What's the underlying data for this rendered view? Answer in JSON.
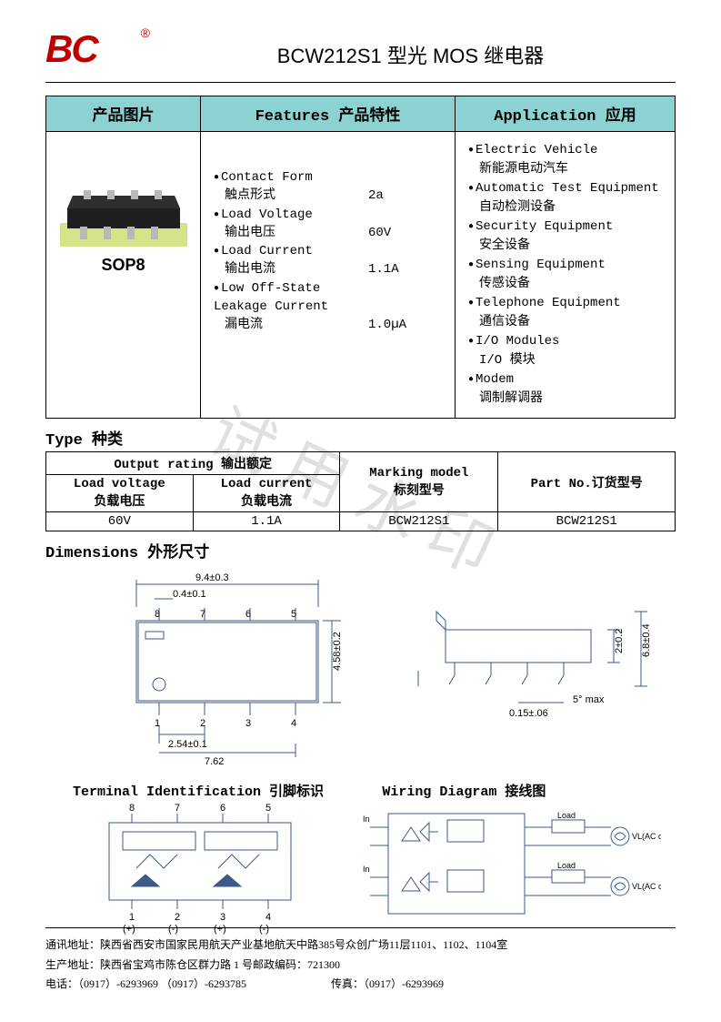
{
  "header": {
    "logo_text": "BC",
    "title": "BCW212S1 型光 MOS 继电器"
  },
  "columns": {
    "image": "产品图片",
    "features": "Features 产品特性",
    "application": "Application 应用"
  },
  "product": {
    "package_label": "SOP8",
    "chip_body_color": "#1f1f1f",
    "pin_color": "#b8b8b8",
    "board_color": "#d8e28a"
  },
  "features": [
    {
      "en": "Contact Form",
      "cn": "触点形式",
      "val": "2a"
    },
    {
      "en": "Load Voltage",
      "cn": "输出电压",
      "val": "60V"
    },
    {
      "en": "Load Current",
      "cn": "输出电流",
      "val": "1.1A"
    },
    {
      "en": "Low Off-State Leakage Current",
      "cn": "漏电流",
      "val": "1.0µA"
    }
  ],
  "applications": [
    {
      "en": "Electric Vehicle",
      "cn": "新能源电动汽车"
    },
    {
      "en": "Automatic Test Equipment",
      "cn": "自动检测设备"
    },
    {
      "en": "Security Equipment",
      "cn": "安全设备"
    },
    {
      "en": "Sensing Equipment",
      "cn": "传感设备"
    },
    {
      "en": "Telephone Equipment",
      "cn": "通信设备"
    },
    {
      "en": "I/O Modules",
      "cn": "I/O 模块"
    },
    {
      "en": "Modem",
      "cn": "调制解调器"
    }
  ],
  "sections": {
    "type": "Type 种类",
    "dimensions": "Dimensions 外形尺寸",
    "terminal": "Terminal Identification 引脚标识",
    "wiring": "Wiring Diagram  接线图"
  },
  "type_table": {
    "output_rating": "Output rating 输出额定",
    "load_voltage_h": "Load voltage",
    "load_voltage_cn": "负载电压",
    "load_current_h": "Load current",
    "load_current_cn": "负载电流",
    "marking_h": "Marking model",
    "marking_cn": "标刻型号",
    "partno_h": "Part No.订货型号",
    "row": {
      "lv": "60V",
      "lc": "1.1A",
      "mark": "BCW212S1",
      "part": "BCW212S1"
    }
  },
  "dimensions": {
    "w_outer": "9.4±0.3",
    "w_pin": "0.4±0.1",
    "h_body": "4.58±0.2",
    "pitch": "2.54±0.1",
    "pin_span": "7.62",
    "side_thick": "0.2",
    "side_tip": "0.15",
    "side_h": "2±0.2",
    "side_total": "6.8±0.4",
    "side_ext": "0.15±.06",
    "bend": "5° max",
    "pins_top": [
      "8",
      "7",
      "6",
      "5"
    ],
    "pins_bot": [
      "1",
      "2",
      "3",
      "4"
    ]
  },
  "terminal": {
    "top": [
      "8",
      "7",
      "6",
      "5"
    ],
    "bot": [
      "1",
      "2",
      "3",
      "4"
    ],
    "signs": [
      "(+)",
      "(-)",
      "(+)",
      "(-)"
    ]
  },
  "wiring": {
    "in": "In",
    "load": "Load",
    "src": "VL(AC or DC)"
  },
  "watermark": "试用水印",
  "footer": {
    "addr1_label": "通讯地址：",
    "addr1": "陕西省西安市国家民用航天产业基地航天中路385号众创广场11层1101、1102、1104室",
    "addr2_label": "生产地址：",
    "addr2": "陕西省宝鸡市陈仓区群力路 1 号邮政编码：721300",
    "tel_label": "电话：",
    "tel": "（0917）-6293969 （0917）-6293785",
    "fax_label": "传真：",
    "fax": "（0917）-6293969"
  },
  "colors": {
    "header_bg": "#8dd2d2",
    "border": "#000000",
    "logo": "#c00000",
    "diagram_line": "#3a5a8a"
  }
}
